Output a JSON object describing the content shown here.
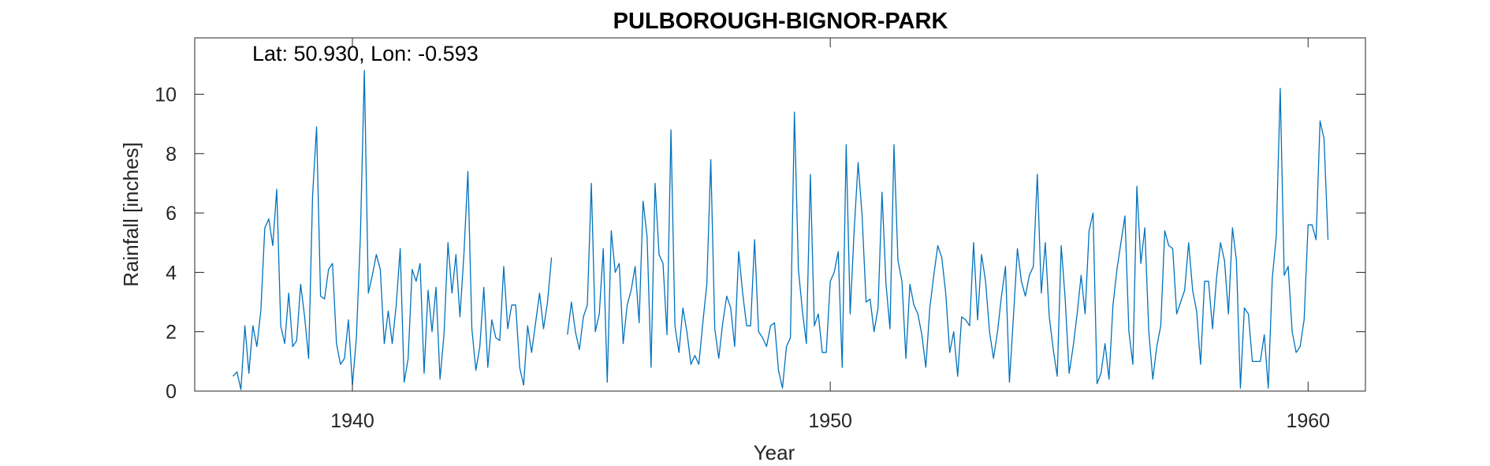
{
  "chart_data": {
    "type": "line",
    "title": "PULBOROUGH-BIGNOR-PARK",
    "xlabel": "Year",
    "ylabel": "Rainfall [inches]",
    "annotation": "Lat: 50.930, Lon: -0.593",
    "xlim": [
      1936.7,
      1961.2
    ],
    "ylim": [
      0,
      11.9
    ],
    "xticks": [
      1940,
      1950,
      1960
    ],
    "yticks": [
      0,
      2,
      4,
      6,
      8,
      10
    ],
    "grid": false,
    "series_color": "#0072BD",
    "series": [
      {
        "start": 1937.5,
        "step": 0.0833333,
        "values": [
          0.5,
          0.65,
          0.05,
          2.2,
          0.6,
          2.2,
          1.5,
          2.7,
          5.5,
          5.8,
          4.9,
          6.8,
          2.2,
          1.6,
          3.3,
          1.5,
          1.7,
          3.6,
          2.5,
          1.1,
          6.6,
          8.9,
          3.2,
          3.1,
          4.1,
          4.3,
          1.6,
          0.9,
          1.1,
          2.4,
          0.2,
          1.8,
          5.2,
          10.8,
          3.3,
          3.9,
          4.6,
          4.1,
          1.6,
          2.7,
          1.6,
          2.9,
          4.8,
          0.3,
          1.1,
          4.1,
          3.7,
          4.3,
          0.6,
          3.4,
          2.0,
          3.5,
          0.4,
          1.9,
          5.0,
          3.3,
          4.6,
          2.5,
          4.6,
          7.4,
          2.1,
          0.7,
          1.5,
          3.5,
          0.8,
          2.4,
          1.8,
          1.7,
          4.2,
          2.1,
          2.9,
          2.9,
          0.8,
          0.2,
          2.2,
          1.3,
          2.3,
          3.3,
          2.1,
          3.0,
          4.5
        ]
      },
      {
        "start": 1944.5,
        "step": 0.0833333,
        "values": [
          1.9,
          3.0,
          2.0,
          1.4,
          2.5,
          2.9,
          7.0,
          2.0,
          2.6,
          4.8,
          0.3,
          5.4,
          4.0,
          4.3,
          1.6,
          2.9,
          3.4,
          4.2,
          2.3,
          6.4,
          5.2,
          0.8,
          7.0,
          4.6,
          4.3,
          1.9,
          8.8,
          2.2,
          1.3,
          2.8,
          2.0,
          0.9,
          1.2,
          0.9,
          2.3,
          3.6,
          7.8,
          2.1,
          1.1,
          2.3,
          3.2,
          2.8,
          1.5,
          4.7,
          3.3,
          2.2,
          2.2,
          5.1,
          2.0,
          1.8,
          1.5,
          2.2,
          2.3,
          0.7,
          0.1,
          1.5,
          1.8,
          9.4,
          4.1,
          2.7,
          1.6,
          7.3,
          2.2,
          2.6,
          1.3,
          1.3,
          3.7,
          4.0,
          4.7,
          0.8,
          8.3,
          2.6,
          5.4,
          7.7,
          5.9,
          3.0,
          3.1,
          2.0,
          2.8,
          6.7,
          3.6,
          2.1,
          8.3,
          4.4,
          3.7,
          1.1,
          3.6,
          2.9,
          2.6,
          1.9,
          0.8,
          2.8,
          3.9,
          4.9,
          4.5,
          3.3,
          1.3,
          2.0,
          0.5,
          2.5,
          2.4,
          2.2,
          5.0,
          2.4,
          4.6,
          3.7,
          2.0,
          1.1,
          2.0,
          3.2,
          4.2,
          0.3,
          2.5,
          4.8,
          3.7,
          3.2,
          3.9,
          4.2,
          7.3,
          3.3,
          5.0,
          2.5,
          1.4,
          0.5,
          4.9,
          3.1,
          0.6,
          1.5,
          2.6,
          3.9,
          2.6,
          5.4,
          6.0,
          0.25,
          0.6,
          1.6,
          0.4,
          2.9,
          4.1,
          5.0,
          5.9,
          2.0,
          0.9,
          6.9,
          4.3,
          5.5,
          2.0,
          0.4,
          1.5,
          2.2,
          5.4,
          4.9,
          4.8,
          2.6,
          3.0,
          3.4,
          5.0,
          3.4,
          2.7,
          0.9,
          3.7,
          3.7,
          2.1,
          3.8,
          5.0,
          4.4,
          2.6,
          5.5,
          4.4,
          0.1,
          2.8,
          2.6,
          1.0,
          1.0,
          1.0,
          1.9,
          0.1,
          3.8,
          5.2,
          10.2,
          3.9,
          4.2,
          2.0,
          1.3,
          1.5,
          2.4,
          5.6,
          5.6,
          5.1,
          9.1,
          8.5,
          5.1
        ]
      }
    ]
  }
}
